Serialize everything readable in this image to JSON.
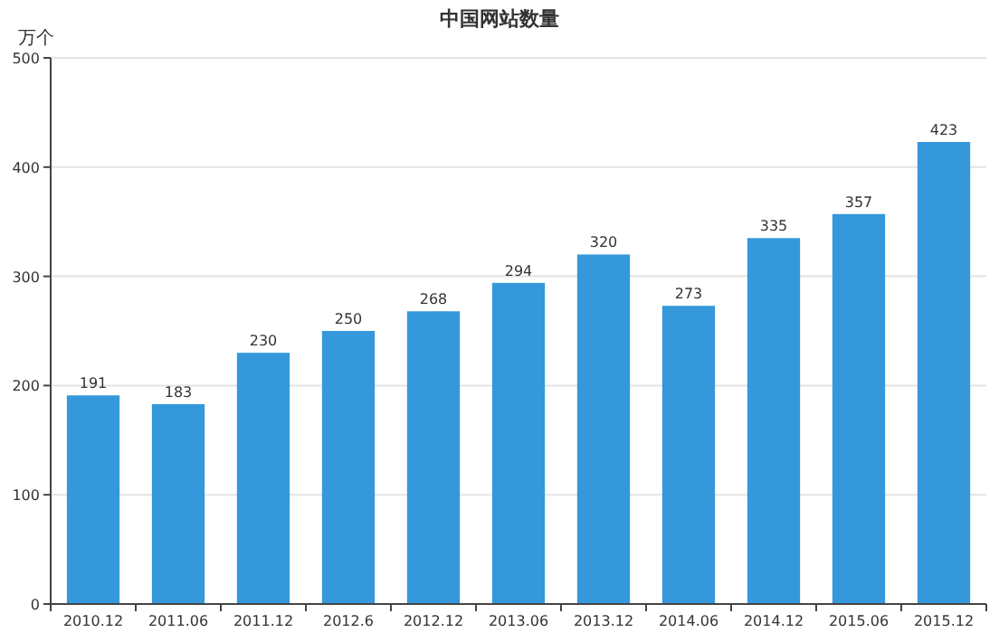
{
  "chart_data": {
    "type": "bar",
    "title": "中国网站数量",
    "ylabel": "万个",
    "categories": [
      "2010.12",
      "2011.06",
      "2011.12",
      "2012.6",
      "2012.12",
      "2013.06",
      "2013.12",
      "2014.06",
      "2014.12",
      "2015.06",
      "2015.12"
    ],
    "values": [
      191,
      183,
      230,
      250,
      268,
      294,
      320,
      273,
      335,
      357,
      423
    ],
    "color": "#3498db",
    "ylim": [
      0,
      500
    ],
    "yticks": [
      0,
      100,
      200,
      300,
      400,
      500
    ],
    "grid": "y",
    "data_labels": true
  }
}
